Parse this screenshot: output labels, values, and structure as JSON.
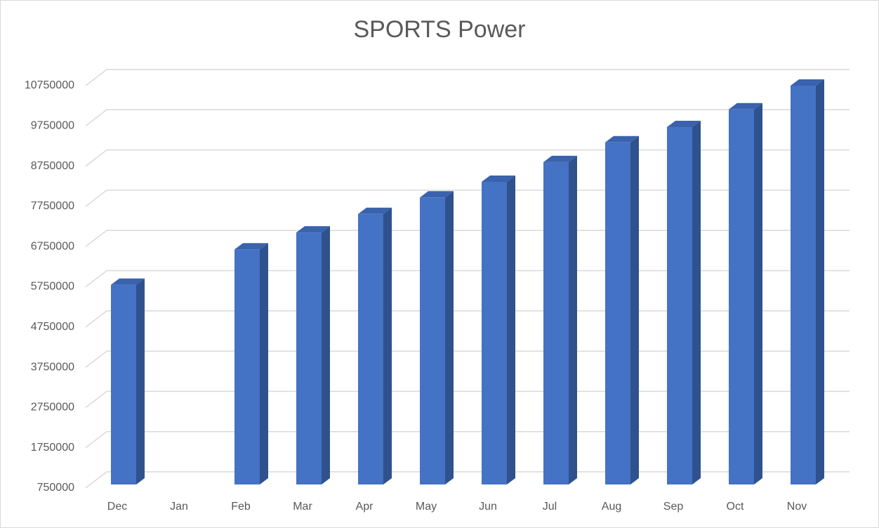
{
  "chart_data": {
    "type": "bar3d",
    "title": "SPORTS Power",
    "categories": [
      "Dec",
      "Jan",
      "Feb",
      "Mar",
      "Apr",
      "May",
      "Jun",
      "Jul",
      "Aug",
      "Sep",
      "Oct",
      "Nov"
    ],
    "values": [
      5800000,
      null,
      6680000,
      7100000,
      7560000,
      7970000,
      8360000,
      8850000,
      9340000,
      9720000,
      10160000,
      10750000
    ],
    "color": "#4472c4",
    "ylim": [
      750000,
      10750000
    ],
    "yticks": [
      750000,
      1750000,
      2750000,
      3750000,
      4750000,
      5750000,
      6750000,
      7750000,
      8750000,
      9750000,
      10750000
    ],
    "grid": true
  }
}
